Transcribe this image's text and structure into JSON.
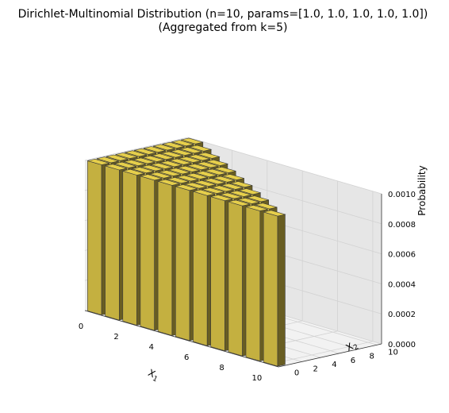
{
  "chart_data": {
    "type": "bar3d",
    "title": "Dirichlet-Multinomial Distribution (n=10, params=[1.0, 1.0, 1.0, 1.0, 1.0])",
    "subtitle": "(Aggregated from k=5)",
    "xlabel_main": "X",
    "xlabel_sub": "1",
    "ylabel_main": "X",
    "ylabel_sub": "2",
    "zlabel": "Probability",
    "xlim": [
      0,
      10
    ],
    "ylim": [
      0,
      10
    ],
    "zlim": [
      0,
      0.001
    ],
    "xticks": [
      "0",
      "2",
      "4",
      "6",
      "8",
      "10"
    ],
    "yticks": [
      "0",
      "2",
      "4",
      "6",
      "8",
      "10"
    ],
    "zticks": [
      "0.0000",
      "0.0002",
      "0.0004",
      "0.0006",
      "0.0008",
      "0.0010"
    ],
    "grid": true,
    "bar_color": "#e6cf4b",
    "bars_note_value": 0.001,
    "bars": [
      {
        "x": 0,
        "y": 0,
        "z": 0.001
      },
      {
        "x": 0,
        "y": 1,
        "z": 0.001
      },
      {
        "x": 0,
        "y": 2,
        "z": 0.001
      },
      {
        "x": 0,
        "y": 3,
        "z": 0.001
      },
      {
        "x": 0,
        "y": 4,
        "z": 0.001
      },
      {
        "x": 0,
        "y": 5,
        "z": 0.001
      },
      {
        "x": 0,
        "y": 6,
        "z": 0.001
      },
      {
        "x": 0,
        "y": 7,
        "z": 0.001
      },
      {
        "x": 0,
        "y": 8,
        "z": 0.001
      },
      {
        "x": 0,
        "y": 9,
        "z": 0.001
      },
      {
        "x": 0,
        "y": 10,
        "z": 0.001
      },
      {
        "x": 1,
        "y": 0,
        "z": 0.001
      },
      {
        "x": 1,
        "y": 1,
        "z": 0.001
      },
      {
        "x": 1,
        "y": 2,
        "z": 0.001
      },
      {
        "x": 1,
        "y": 3,
        "z": 0.001
      },
      {
        "x": 1,
        "y": 4,
        "z": 0.001
      },
      {
        "x": 1,
        "y": 5,
        "z": 0.001
      },
      {
        "x": 1,
        "y": 6,
        "z": 0.001
      },
      {
        "x": 1,
        "y": 7,
        "z": 0.001
      },
      {
        "x": 1,
        "y": 8,
        "z": 0.001
      },
      {
        "x": 1,
        "y": 9,
        "z": 0.001
      },
      {
        "x": 2,
        "y": 0,
        "z": 0.001
      },
      {
        "x": 2,
        "y": 1,
        "z": 0.001
      },
      {
        "x": 2,
        "y": 2,
        "z": 0.001
      },
      {
        "x": 2,
        "y": 3,
        "z": 0.001
      },
      {
        "x": 2,
        "y": 4,
        "z": 0.001
      },
      {
        "x": 2,
        "y": 5,
        "z": 0.001
      },
      {
        "x": 2,
        "y": 6,
        "z": 0.001
      },
      {
        "x": 2,
        "y": 7,
        "z": 0.001
      },
      {
        "x": 2,
        "y": 8,
        "z": 0.001
      },
      {
        "x": 3,
        "y": 0,
        "z": 0.001
      },
      {
        "x": 3,
        "y": 1,
        "z": 0.001
      },
      {
        "x": 3,
        "y": 2,
        "z": 0.001
      },
      {
        "x": 3,
        "y": 3,
        "z": 0.001
      },
      {
        "x": 3,
        "y": 4,
        "z": 0.001
      },
      {
        "x": 3,
        "y": 5,
        "z": 0.001
      },
      {
        "x": 3,
        "y": 6,
        "z": 0.001
      },
      {
        "x": 3,
        "y": 7,
        "z": 0.001
      },
      {
        "x": 4,
        "y": 0,
        "z": 0.001
      },
      {
        "x": 4,
        "y": 1,
        "z": 0.001
      },
      {
        "x": 4,
        "y": 2,
        "z": 0.001
      },
      {
        "x": 4,
        "y": 3,
        "z": 0.001
      },
      {
        "x": 4,
        "y": 4,
        "z": 0.001
      },
      {
        "x": 4,
        "y": 5,
        "z": 0.001
      },
      {
        "x": 4,
        "y": 6,
        "z": 0.001
      },
      {
        "x": 5,
        "y": 0,
        "z": 0.001
      },
      {
        "x": 5,
        "y": 1,
        "z": 0.001
      },
      {
        "x": 5,
        "y": 2,
        "z": 0.001
      },
      {
        "x": 5,
        "y": 3,
        "z": 0.001
      },
      {
        "x": 5,
        "y": 4,
        "z": 0.001
      },
      {
        "x": 5,
        "y": 5,
        "z": 0.001
      },
      {
        "x": 6,
        "y": 0,
        "z": 0.001
      },
      {
        "x": 6,
        "y": 1,
        "z": 0.001
      },
      {
        "x": 6,
        "y": 2,
        "z": 0.001
      },
      {
        "x": 6,
        "y": 3,
        "z": 0.001
      },
      {
        "x": 6,
        "y": 4,
        "z": 0.001
      },
      {
        "x": 7,
        "y": 0,
        "z": 0.001
      },
      {
        "x": 7,
        "y": 1,
        "z": 0.001
      },
      {
        "x": 7,
        "y": 2,
        "z": 0.001
      },
      {
        "x": 7,
        "y": 3,
        "z": 0.001
      },
      {
        "x": 8,
        "y": 0,
        "z": 0.001
      },
      {
        "x": 8,
        "y": 1,
        "z": 0.001
      },
      {
        "x": 8,
        "y": 2,
        "z": 0.001
      },
      {
        "x": 9,
        "y": 0,
        "z": 0.001
      },
      {
        "x": 9,
        "y": 1,
        "z": 0.001
      },
      {
        "x": 10,
        "y": 0,
        "z": 0.001
      }
    ]
  }
}
